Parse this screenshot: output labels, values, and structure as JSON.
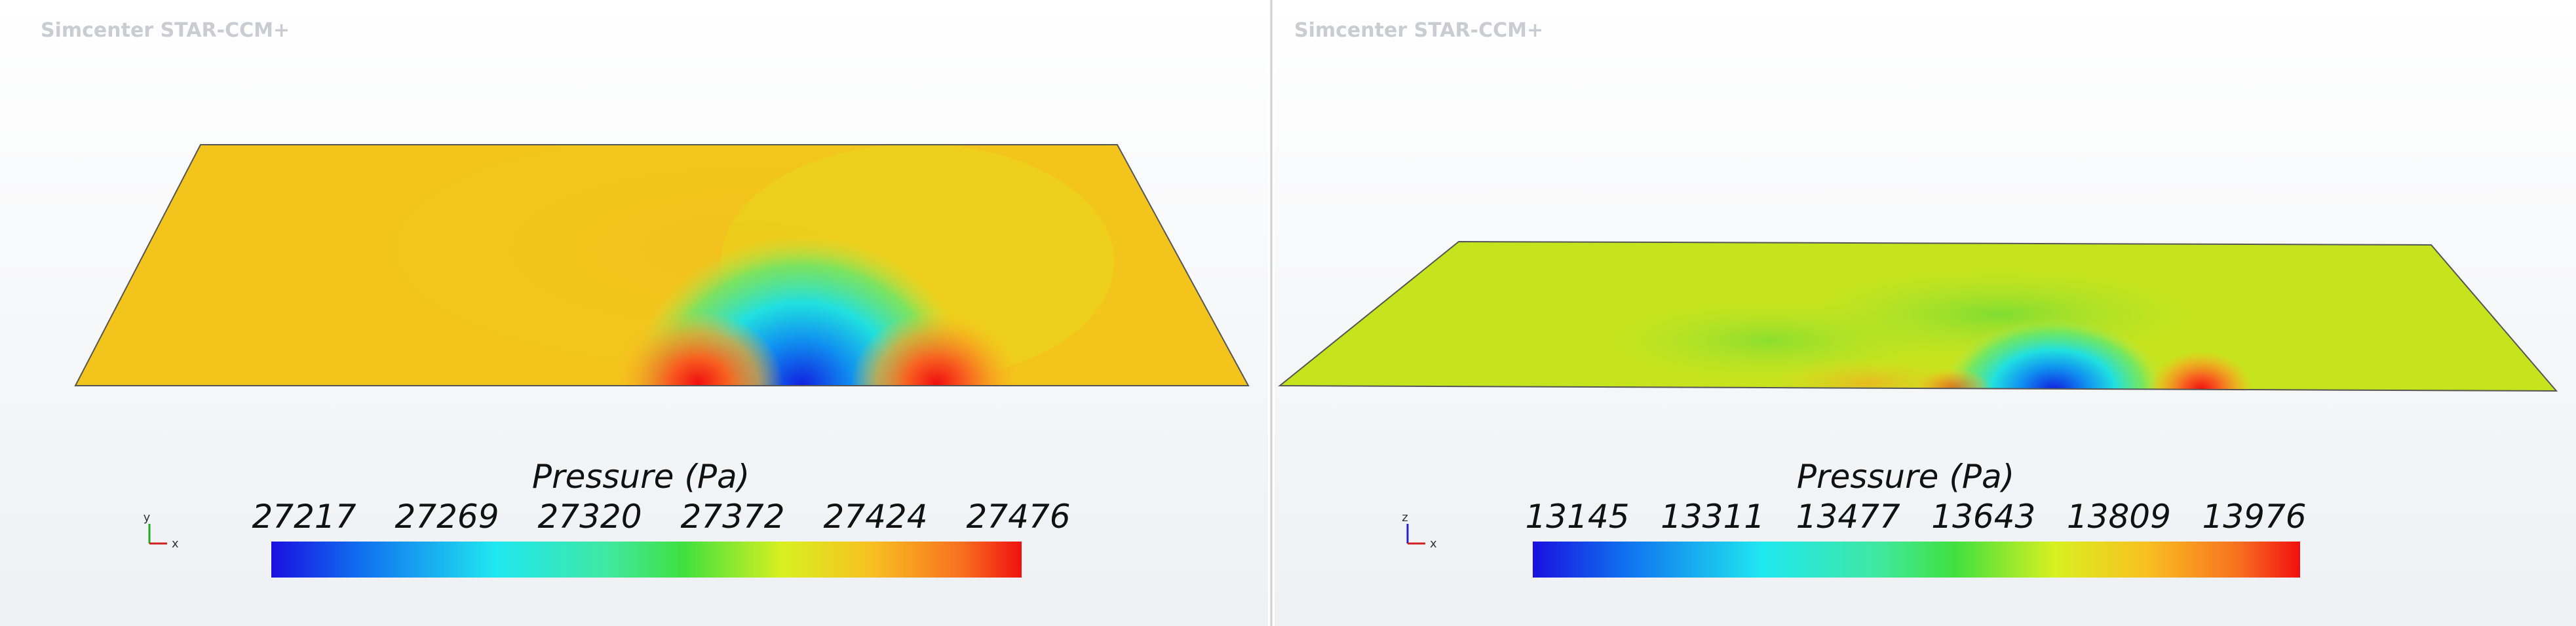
{
  "panels": [
    {
      "watermark": "Simcenter STAR-CCM+",
      "triad": {
        "vertical": "y",
        "horizontal": "x"
      },
      "colorbar": {
        "title": "Pressure (Pa)",
        "ticks": [
          27217,
          27269,
          27320,
          27372,
          27424,
          27476
        ]
      }
    },
    {
      "watermark": "Simcenter STAR-CCM+",
      "triad": {
        "vertical": "z",
        "horizontal": "x"
      },
      "colorbar": {
        "title": "Pressure (Pa)",
        "ticks": [
          13145,
          13311,
          13477,
          13643,
          13809,
          13976
        ]
      }
    }
  ]
}
